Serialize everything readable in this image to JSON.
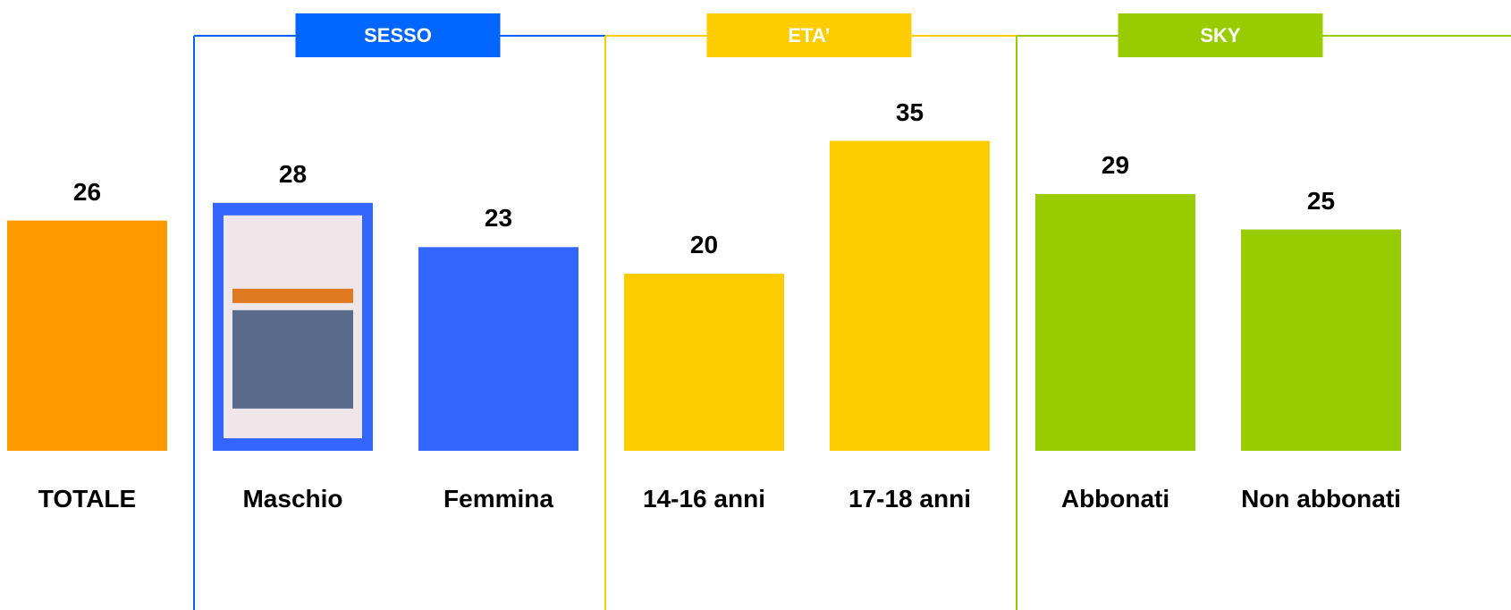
{
  "chart_data": {
    "type": "bar",
    "categories": [
      "TOTALE",
      "Maschio",
      "Femmina",
      "14-16 anni",
      "17-18 anni",
      "Abbonati",
      "Non abbonati"
    ],
    "values": [
      26,
      28,
      23,
      20,
      35,
      29,
      25
    ],
    "colors": [
      "#ff9900",
      "#3366ff",
      "#3366ff",
      "#ffcc00",
      "#ffcc00",
      "#99cc00",
      "#99cc00"
    ],
    "groups": [
      {
        "label": "SESSO",
        "color": "#0066ff",
        "categories": [
          "Maschio",
          "Femmina"
        ]
      },
      {
        "label": "ETA’",
        "color": "#ffcc00",
        "categories": [
          "14-16 anni",
          "17-18 anni"
        ]
      },
      {
        "label": "SKY",
        "color": "#99cc00",
        "categories": [
          "Abbonati",
          "Non abbonati"
        ]
      }
    ]
  }
}
